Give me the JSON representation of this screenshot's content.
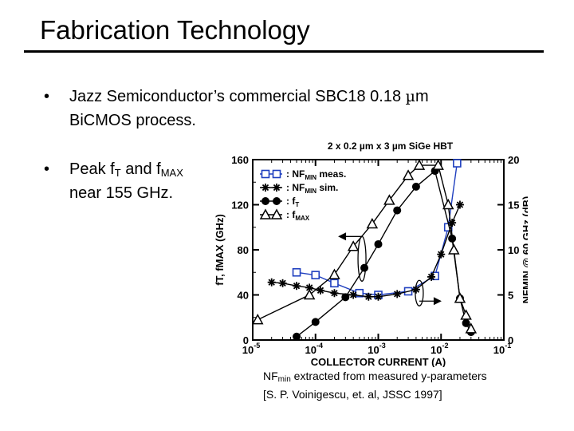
{
  "slide": {
    "title": "Fabrication Technology",
    "bullets": [
      {
        "marker": "•",
        "line1": "Jazz Semiconductor’s commercial SBC18 0.18 ",
        "unit_symbol": "µ",
        "unit_tail": "m",
        "line2": "BiCMOS process."
      },
      {
        "marker": "•",
        "line1_a": "Peak f",
        "line1_sub_a": "T",
        "line1_b": " and f",
        "line1_sub_b": "MAX",
        "line2": "near 155 GHz."
      }
    ],
    "caption": {
      "line1_a": "NF",
      "line1_sub": "min",
      "line1_b": " extracted from measured y-parameters",
      "line2": "[S. P. Voinigescu, et. al, JSSC 1997]"
    }
  },
  "chart_data": {
    "type": "line",
    "title": "2 x 0.2 µm x 3 µm  SiGe HBT",
    "xlabel": "COLLECTOR CURRENT (A)",
    "ylabel_left": "fT, fMAX (GHz)",
    "ylabel_right": "NFMIN @ 60 GHz (dB)",
    "x_scale": "log",
    "xlim": [
      1e-05,
      0.1
    ],
    "ylim_left": [
      0,
      160
    ],
    "ylim_right": [
      0,
      20
    ],
    "x_ticks": [
      {
        "base": "10",
        "exp": "-5"
      },
      {
        "base": "10",
        "exp": "-4"
      },
      {
        "base": "10",
        "exp": "-3"
      },
      {
        "base": "10",
        "exp": "-2"
      },
      {
        "base": "10",
        "exp": "-1"
      }
    ],
    "y_ticks_left": [
      "0",
      "40",
      "80",
      "120",
      "160"
    ],
    "y_ticks_right": [
      "0",
      "5",
      "10",
      "15",
      "20"
    ],
    "grid": false,
    "legend_position": "top-left",
    "legend": [
      {
        "label": "NF",
        "sub": "MIN",
        "suffix": " meas.",
        "marker": "open-square",
        "color": "#1f3fbf"
      },
      {
        "label": "NF",
        "sub": "MIN",
        "suffix": " sim.",
        "marker": "asterisk",
        "color": "#000000"
      },
      {
        "label": "f",
        "sub": "T",
        "suffix": "",
        "marker": "filled-circle",
        "color": "#000000"
      },
      {
        "label": "f",
        "sub": "MAX",
        "suffix": "",
        "marker": "open-triangle",
        "color": "#000000"
      }
    ],
    "series": [
      {
        "axis": "right",
        "marker": "open-square",
        "color": "#1f3fbf",
        "points": [
          [
            5e-05,
            7.5
          ],
          [
            0.0001,
            7.2
          ],
          [
            0.0002,
            6.3
          ],
          [
            0.0005,
            5.2
          ],
          [
            0.001,
            5.0
          ],
          [
            0.003,
            5.4
          ],
          [
            0.008,
            7.1
          ],
          [
            0.013,
            12.5
          ],
          [
            0.018,
            19.6
          ]
        ]
      },
      {
        "axis": "right",
        "marker": "asterisk",
        "color": "#000000",
        "points": [
          [
            2e-05,
            6.4
          ],
          [
            3e-05,
            6.3
          ],
          [
            5e-05,
            6.0
          ],
          [
            8e-05,
            5.8
          ],
          [
            0.00012,
            5.5
          ],
          [
            0.0002,
            5.2
          ],
          [
            0.0004,
            5.0
          ],
          [
            0.0007,
            4.8
          ],
          [
            0.001,
            4.8
          ],
          [
            0.002,
            5.1
          ],
          [
            0.004,
            5.6
          ],
          [
            0.007,
            7.0
          ],
          [
            0.01,
            9.5
          ],
          [
            0.015,
            13.0
          ],
          [
            0.02,
            15.0
          ]
        ]
      },
      {
        "axis": "left",
        "marker": "filled-circle",
        "color": "#000000",
        "points": [
          [
            5e-05,
            3
          ],
          [
            0.0001,
            16
          ],
          [
            0.0003,
            38
          ],
          [
            0.0006,
            64
          ],
          [
            0.001,
            85
          ],
          [
            0.002,
            115
          ],
          [
            0.004,
            136
          ],
          [
            0.008,
            150
          ],
          [
            0.015,
            90
          ],
          [
            0.02,
            37
          ],
          [
            0.025,
            15
          ],
          [
            0.03,
            7
          ]
        ]
      },
      {
        "axis": "left",
        "marker": "open-triangle",
        "color": "#000000",
        "points": [
          [
            1.2e-05,
            18
          ],
          [
            8e-05,
            40
          ],
          [
            0.0002,
            58
          ],
          [
            0.0004,
            83
          ],
          [
            0.0008,
            103
          ],
          [
            0.0015,
            124
          ],
          [
            0.003,
            146
          ],
          [
            0.0045,
            155
          ],
          [
            0.009,
            155
          ],
          [
            0.013,
            120
          ],
          [
            0.016,
            80
          ],
          [
            0.02,
            37
          ],
          [
            0.025,
            22
          ],
          [
            0.03,
            10
          ]
        ]
      }
    ]
  }
}
